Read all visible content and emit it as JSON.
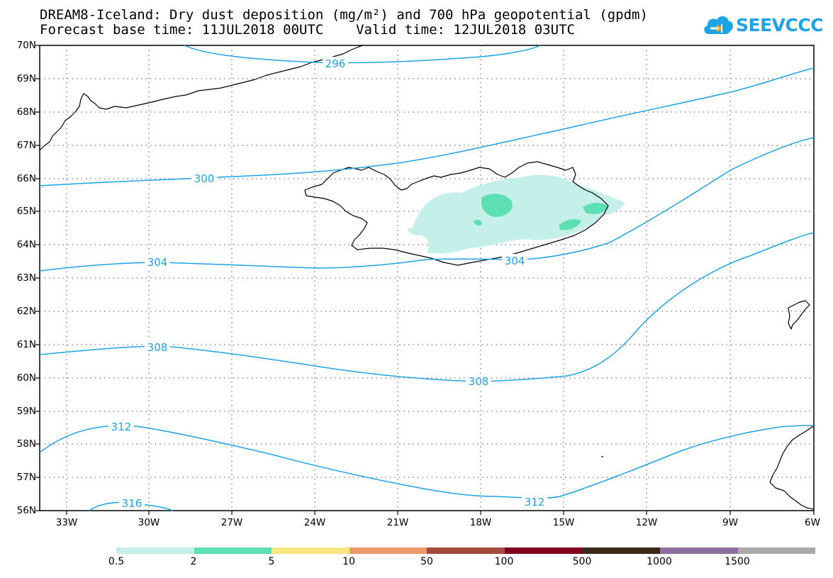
{
  "title": {
    "line1": "DREAM8-Iceland: Dry dust deposition (mg/m²) and 700 hPa geopotential (gpdm)",
    "line2": "Forecast base time: 11JUL2018 00UTC    Valid time: 12JUL2018 03UTC"
  },
  "logo": {
    "text": "SEEVCCC",
    "icon": "cloud-icon",
    "color": "#1ea4e6"
  },
  "map": {
    "lat_labels": [
      "70N",
      "69N",
      "68N",
      "67N",
      "66N",
      "65N",
      "64N",
      "63N",
      "62N",
      "61N",
      "60N",
      "59N",
      "58N",
      "57N",
      "56N"
    ],
    "lon_labels": [
      "33W",
      "30W",
      "27W",
      "24W",
      "21W",
      "18W",
      "15W",
      "12W",
      "9W",
      "6W"
    ],
    "lat_range": [
      56,
      70
    ],
    "lon_range": [
      -34.1,
      -6
    ],
    "grid": "dotted",
    "contour_color": "#1ea4e6",
    "contour_labels": [
      "296",
      "300",
      "304",
      "304",
      "308",
      "308",
      "312",
      "312",
      "316"
    ]
  },
  "legend": {
    "labels": [
      "0.5",
      "2",
      "5",
      "10",
      "50",
      "100",
      "500",
      "1000",
      "1500"
    ],
    "colors": [
      "#c5f0ea",
      "#5ddfb4",
      "#f8e680",
      "#ec9a6c",
      "#a54a3e",
      "#800020",
      "#3b2a1a",
      "#8e6ea0",
      "#aaaaaa"
    ]
  }
}
